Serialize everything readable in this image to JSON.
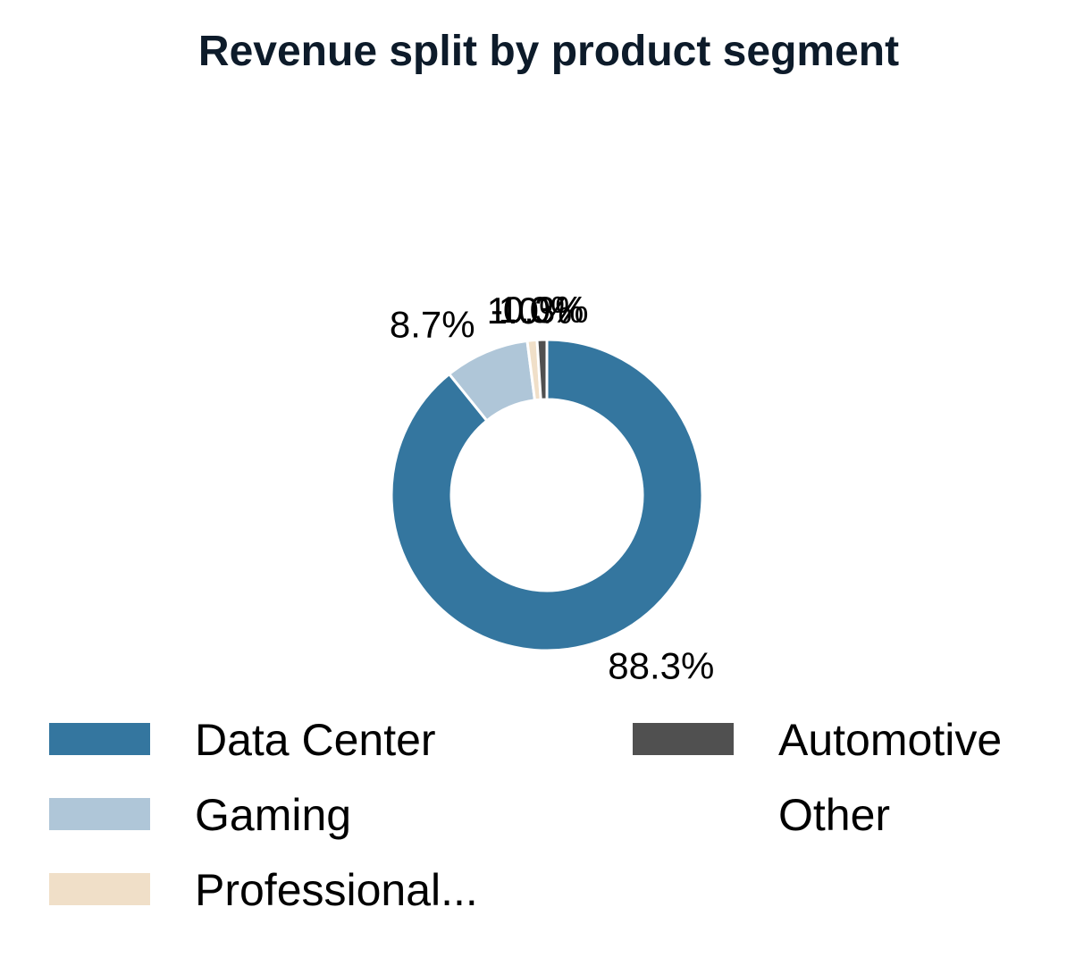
{
  "chart_data": {
    "type": "pie",
    "title": "Revenue split by product segment",
    "legend_position": "bottom",
    "slices": [
      {
        "name": "Data Center",
        "value": 88.3,
        "label": "88.3%",
        "color": "#34769f"
      },
      {
        "name": "Gaming",
        "value": 8.7,
        "label": "8.7%",
        "color": "#afc6d8"
      },
      {
        "name": "Professional...",
        "value": 1.0,
        "label": "1.0%",
        "color": "#f0dfc8"
      },
      {
        "name": "Automotive",
        "value": 1.0,
        "label": "1.0%",
        "color": "#505050"
      },
      {
        "name": "Other",
        "value": -0.3,
        "label": "-0.3%",
        "color": "#ffffff"
      }
    ]
  }
}
